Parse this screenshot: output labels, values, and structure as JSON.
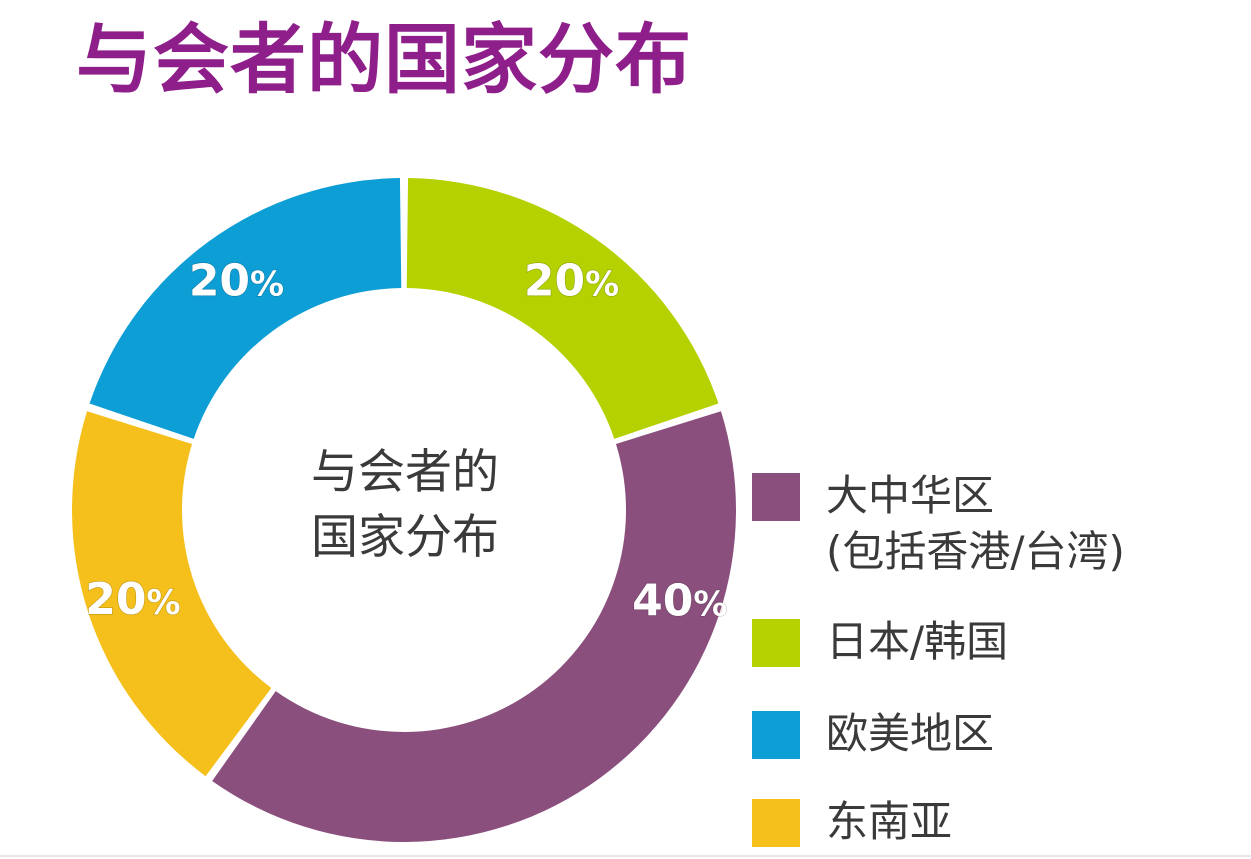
{
  "title": "与会者的国家分布",
  "chart_data": {
    "type": "pie",
    "variant": "donut",
    "title": "与会者的国家分布",
    "center_label": [
      "与会者的",
      "国家分布"
    ],
    "unit": "%",
    "slices": [
      {
        "name": "日本/韩国",
        "value": 20,
        "color": "#b5d100"
      },
      {
        "name": "大中华区",
        "name_line2": "(包括香港/台湾)",
        "value": 40,
        "color": "#8a4f7d"
      },
      {
        "name": "东南亚",
        "value": 20,
        "color": "#f5c01c"
      },
      {
        "name": "欧美地区",
        "value": 20,
        "color": "#0e9ed6"
      }
    ],
    "legend": {
      "placement": "right",
      "items": [
        {
          "label": "大中华区",
          "label_line2": "(包括香港/台湾)",
          "color": "#8a4f7d"
        },
        {
          "label": "日本/韩国",
          "color": "#b5d100"
        },
        {
          "label": "欧美地区",
          "color": "#0e9ed6"
        },
        {
          "label": "东南亚",
          "color": "#f5c01c"
        }
      ]
    }
  }
}
